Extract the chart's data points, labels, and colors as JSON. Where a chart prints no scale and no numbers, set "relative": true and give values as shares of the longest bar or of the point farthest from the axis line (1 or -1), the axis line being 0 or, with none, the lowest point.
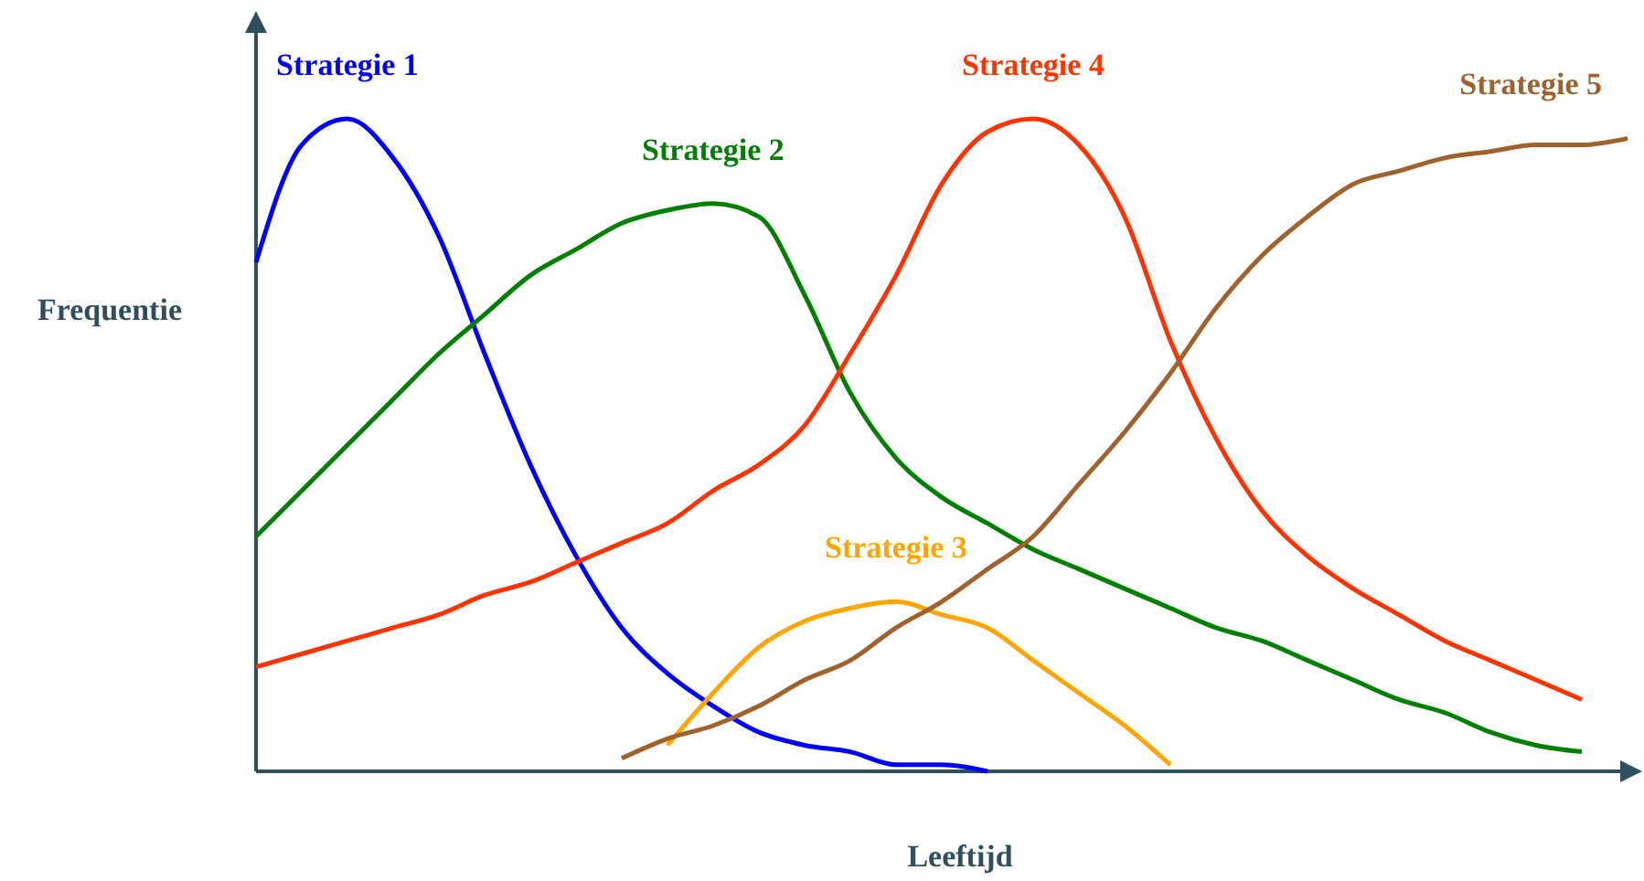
{
  "chart_data": {
    "type": "line",
    "relative": true,
    "xlabel": "Leeftijd",
    "ylabel": "Frequentie",
    "categories": [
      null,
      null,
      null,
      null,
      null,
      null,
      null,
      null,
      null,
      null,
      null,
      null,
      null,
      null,
      null,
      null,
      null,
      null,
      null,
      null,
      null,
      null,
      null,
      null,
      null,
      null,
      null,
      null,
      null,
      null,
      null
    ],
    "series": [
      {
        "name": "Strategie 1",
        "color": "#0000ff",
        "values": [
          0.78,
          0.96,
          1,
          0.94,
          0.82,
          0.64,
          0.47,
          0.33,
          0.22,
          0.15,
          0.1,
          0.06,
          0.04,
          0.03,
          0.01,
          0.01,
          0,
          null,
          null,
          null,
          null,
          null,
          null,
          null,
          null,
          null,
          null,
          null,
          null,
          null,
          null
        ]
      },
      {
        "name": "Strategie 2",
        "color": "#008000",
        "values": [
          0.36,
          0.43,
          0.5,
          0.57,
          0.64,
          0.7,
          0.76,
          0.8,
          0.84,
          0.86,
          0.87,
          0.85,
          0.73,
          0.58,
          0.48,
          0.42,
          0.38,
          0.34,
          0.31,
          0.28,
          0.25,
          0.22,
          0.2,
          0.17,
          0.14,
          0.11,
          0.09,
          0.06,
          0.04,
          0.03,
          null
        ]
      },
      {
        "name": "Strategie 3",
        "color": "#ffa500",
        "values": [
          null,
          null,
          null,
          null,
          null,
          null,
          null,
          null,
          null,
          0.04,
          0.12,
          0.19,
          0.23,
          0.25,
          0.26,
          0.24,
          0.22,
          0.17,
          0.12,
          0.07,
          0.01,
          null,
          null,
          null,
          null,
          null,
          null,
          null,
          null,
          null,
          null
        ]
      },
      {
        "name": "Strategie 4",
        "color": "#ff3300",
        "values": [
          0.16,
          0.18,
          0.2,
          0.22,
          0.24,
          0.27,
          0.29,
          0.32,
          0.35,
          0.38,
          0.43,
          0.47,
          0.53,
          0.64,
          0.76,
          0.9,
          0.98,
          1,
          0.96,
          0.85,
          0.66,
          0.51,
          0.4,
          0.33,
          0.28,
          0.24,
          0.2,
          0.17,
          0.14,
          0.11,
          null
        ]
      },
      {
        "name": "Strategie 5",
        "color": "#a0622d",
        "values": [
          null,
          null,
          null,
          null,
          null,
          null,
          null,
          null,
          0.02,
          0.05,
          0.07,
          0.1,
          0.14,
          0.17,
          0.22,
          0.26,
          0.31,
          0.36,
          0.44,
          0.52,
          0.61,
          0.71,
          0.79,
          0.85,
          0.9,
          0.92,
          0.94,
          0.95,
          0.96,
          0.96,
          0.97
        ]
      }
    ]
  }
}
